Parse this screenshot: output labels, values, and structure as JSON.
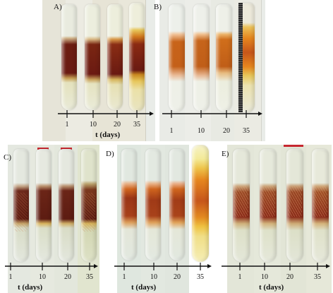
{
  "panels": [
    {
      "id": "A",
      "label": "A)",
      "ticks": [
        "1",
        "10",
        "20",
        "35"
      ],
      "xlabel": "t (days)"
    },
    {
      "id": "B",
      "label": "B)",
      "ticks": [
        "1",
        "10",
        "20",
        "35"
      ],
      "xlabel": ""
    },
    {
      "id": "C",
      "label": "C)",
      "ticks": [
        "1",
        "10",
        "20",
        "35"
      ],
      "xlabel": "t (days)"
    },
    {
      "id": "D",
      "label": "D)",
      "ticks": [
        "1",
        "10",
        "20",
        "35"
      ],
      "xlabel": "t (days)"
    },
    {
      "id": "E",
      "label": "E)",
      "ticks": [
        "1",
        "10",
        "20",
        "35"
      ],
      "xlabel": "t (days)"
    }
  ],
  "colors": {
    "tube_body": "#dfe4d2",
    "dark_red_band": "#6a1a12",
    "amber_band": "#c8641a",
    "orange_band": "#e6861e",
    "yellow_band": "#e7c65a",
    "speckle_band": "#8a2a18",
    "axis": "#111111",
    "cap_red": "#c6272f"
  }
}
